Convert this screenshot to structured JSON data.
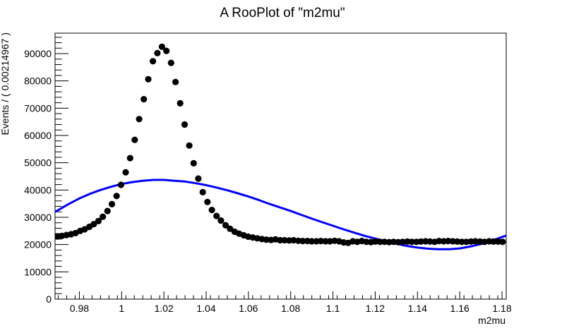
{
  "chart_data": {
    "type": "scatter",
    "title": "A RooPlot of \"m2mu\"",
    "xlabel": "m2mu",
    "ylabel": "Events / ( 0.00214967 )",
    "xlim": [
      0.9685,
      1.182
    ],
    "ylim": [
      0,
      97500
    ],
    "grid": false,
    "x_ticks": [
      "0.98",
      "1",
      "1.02",
      "1.04",
      "1.06",
      "1.08",
      "1.1",
      "1.12",
      "1.14",
      "1.16",
      "1.18"
    ],
    "y_ticks": [
      "0",
      "10000",
      "20000",
      "30000",
      "40000",
      "50000",
      "60000",
      "70000",
      "80000",
      "90000"
    ],
    "series": [
      {
        "kind": "points",
        "color": "#000000",
        "x": [
          0.9696,
          0.9718,
          0.9739,
          0.9761,
          0.9782,
          0.9804,
          0.9825,
          0.9847,
          0.9868,
          0.989,
          0.9911,
          0.9933,
          0.9954,
          0.9976,
          0.9997,
          1.0019,
          1.004,
          1.0062,
          1.0083,
          1.0105,
          1.0126,
          1.0148,
          1.0169,
          1.0191,
          1.0212,
          1.0234,
          1.0255,
          1.0277,
          1.0298,
          1.032,
          1.0341,
          1.0363,
          1.0384,
          1.0406,
          1.0427,
          1.0449,
          1.047,
          1.0492,
          1.0513,
          1.0535,
          1.0556,
          1.0578,
          1.0599,
          1.0621,
          1.0642,
          1.0664,
          1.0685,
          1.0707,
          1.0728,
          1.075,
          1.0771,
          1.0793,
          1.0814,
          1.0836,
          1.0857,
          1.0879,
          1.09,
          1.0922,
          1.0943,
          1.0965,
          1.0986,
          1.1008,
          1.1029,
          1.1051,
          1.1072,
          1.1094,
          1.1115,
          1.1137,
          1.1158,
          1.118,
          1.1201,
          1.1223,
          1.1244,
          1.1266,
          1.1287,
          1.1309,
          1.133,
          1.1352,
          1.1373,
          1.1395,
          1.1416,
          1.1438,
          1.1459,
          1.1481,
          1.1502,
          1.1524,
          1.1545,
          1.1567,
          1.1588,
          1.161,
          1.1631,
          1.1653,
          1.1674,
          1.1696,
          1.1717,
          1.1739,
          1.176,
          1.1782,
          1.1803
        ],
        "y": [
          23000,
          23200,
          23500,
          23800,
          24200,
          25000,
          25600,
          26500,
          27500,
          28600,
          30200,
          32300,
          34800,
          37800,
          41900,
          46500,
          51700,
          58400,
          66000,
          73300,
          80600,
          87200,
          90200,
          92500,
          91000,
          86600,
          79600,
          71800,
          64000,
          56300,
          49800,
          44200,
          39200,
          35600,
          32700,
          30500,
          28800,
          27100,
          25800,
          24700,
          24000,
          23400,
          22900,
          22600,
          22300,
          22000,
          21800,
          21700,
          21900,
          21600,
          21600,
          21500,
          21600,
          21400,
          21300,
          21300,
          21200,
          21200,
          21300,
          21200,
          21200,
          21400,
          21200,
          20800,
          20600,
          21200,
          21000,
          21300,
          21000,
          20900,
          21100,
          21000,
          21000,
          20900,
          21000,
          20900,
          21000,
          21100,
          21000,
          21000,
          21100,
          21200,
          21100,
          21000,
          21300,
          21200,
          21300,
          21200,
          21100,
          21000,
          21000,
          21100,
          21200,
          21100,
          21000,
          21200,
          21100,
          21100,
          21000
        ]
      },
      {
        "kind": "curve",
        "color": "#0000ff",
        "x": [
          0.9685,
          0.975,
          0.98,
          0.985,
          0.99,
          0.995,
          1.0,
          1.005,
          1.01,
          1.015,
          1.02,
          1.025,
          1.03,
          1.035,
          1.04,
          1.045,
          1.05,
          1.055,
          1.06,
          1.065,
          1.07,
          1.075,
          1.08,
          1.085,
          1.09,
          1.095,
          1.1,
          1.105,
          1.11,
          1.115,
          1.12,
          1.125,
          1.13,
          1.135,
          1.14,
          1.145,
          1.15,
          1.155,
          1.16,
          1.165,
          1.17,
          1.175,
          1.182
        ],
        "y": [
          32000,
          34900,
          36900,
          38600,
          40000,
          41200,
          42200,
          42900,
          43400,
          43700,
          43700,
          43400,
          43100,
          42500,
          41800,
          40900,
          39900,
          38800,
          37600,
          36300,
          34900,
          33600,
          32300,
          30900,
          29500,
          28200,
          26900,
          25600,
          24400,
          23200,
          22200,
          21200,
          20300,
          19500,
          18900,
          18500,
          18300,
          18300,
          18600,
          19300,
          20200,
          21400,
          23300
        ]
      }
    ]
  }
}
